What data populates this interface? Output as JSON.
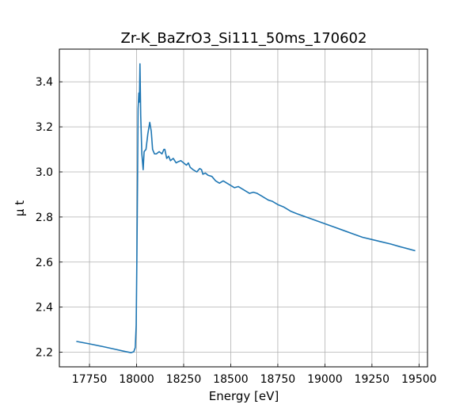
{
  "chart_data": {
    "type": "line",
    "title": "Zr-K_BaZrO3_Si111_50ms_170602",
    "xlabel": "Energy [eV]",
    "ylabel": "μ t",
    "xlim": [
      17590,
      19545
    ],
    "ylim": [
      2.135,
      3.545
    ],
    "xticks": [
      17750,
      18000,
      18250,
      18500,
      18750,
      19000,
      19250,
      19500
    ],
    "yticks": [
      2.2,
      2.4,
      2.6,
      2.8,
      3.0,
      3.2,
      3.4
    ],
    "xtick_labels": [
      "17750",
      "18000",
      "18250",
      "18500",
      "18750",
      "19000",
      "19250",
      "19500"
    ],
    "ytick_labels": [
      "2.2",
      "2.4",
      "2.6",
      "2.8",
      "3.0",
      "3.2",
      "3.4"
    ],
    "grid": true,
    "series": [
      {
        "color": "#1f77b4",
        "x": [
          17680,
          17750,
          17820,
          17880,
          17940,
          17970,
          17985,
          17993,
          17998,
          18002,
          18005,
          18008,
          18012,
          18015,
          18018,
          18022,
          18028,
          18035,
          18040,
          18050,
          18060,
          18070,
          18078,
          18085,
          18095,
          18105,
          18120,
          18135,
          18145,
          18150,
          18160,
          18170,
          18180,
          18195,
          18210,
          18220,
          18235,
          18250,
          18265,
          18275,
          18285,
          18300,
          18320,
          18335,
          18345,
          18352,
          18365,
          18380,
          18400,
          18420,
          18440,
          18460,
          18480,
          18500,
          18520,
          18540,
          18560,
          18580,
          18600,
          18620,
          18640,
          18660,
          18680,
          18700,
          18720,
          18750,
          18780,
          18800,
          18820,
          18850,
          18900,
          18950,
          19000,
          19050,
          19100,
          19150,
          19200,
          19250,
          19300,
          19350,
          19400,
          19450,
          19480
        ],
        "y": [
          2.248,
          2.237,
          2.225,
          2.214,
          2.203,
          2.198,
          2.202,
          2.22,
          2.32,
          2.65,
          2.95,
          3.28,
          3.35,
          3.31,
          3.48,
          3.25,
          3.08,
          3.01,
          3.09,
          3.1,
          3.17,
          3.22,
          3.18,
          3.1,
          3.08,
          3.08,
          3.09,
          3.08,
          3.1,
          3.1,
          3.06,
          3.07,
          3.05,
          3.06,
          3.04,
          3.045,
          3.05,
          3.04,
          3.03,
          3.04,
          3.02,
          3.01,
          3.0,
          3.015,
          3.01,
          2.99,
          2.995,
          2.985,
          2.98,
          2.96,
          2.95,
          2.96,
          2.95,
          2.94,
          2.93,
          2.935,
          2.925,
          2.915,
          2.905,
          2.91,
          2.905,
          2.895,
          2.885,
          2.875,
          2.87,
          2.855,
          2.845,
          2.835,
          2.825,
          2.815,
          2.8,
          2.785,
          2.77,
          2.755,
          2.74,
          2.725,
          2.71,
          2.7,
          2.69,
          2.68,
          2.668,
          2.657,
          2.65
        ]
      }
    ]
  }
}
